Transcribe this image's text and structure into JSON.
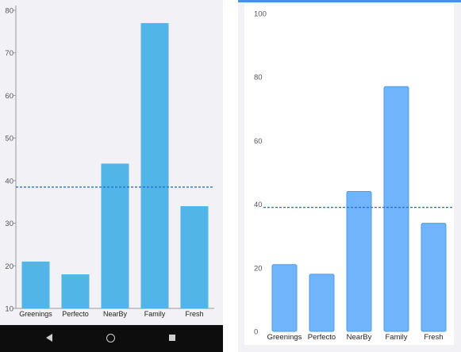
{
  "chart_data": [
    {
      "type": "bar",
      "categories": [
        "Greenings",
        "Perfecto",
        "NearBy",
        "Family",
        "Fresh"
      ],
      "values": [
        21,
        18,
        44,
        77,
        34
      ],
      "reference_line": 38.5,
      "ylim": [
        10,
        80
      ],
      "yticks": [
        10,
        20,
        30,
        40,
        50,
        60,
        70,
        80
      ],
      "bar_color": "#51b5e8",
      "line_color": "#2a6fd4",
      "grid": false
    },
    {
      "type": "bar",
      "categories": [
        "Greenings",
        "Perfecto",
        "NearBy",
        "Family",
        "Fresh"
      ],
      "values": [
        21,
        18,
        44,
        77,
        34
      ],
      "reference_line": 39,
      "ylim": [
        0,
        100
      ],
      "yticks": [
        0,
        20,
        40,
        60,
        80,
        100
      ],
      "bar_color": "#70b5fb",
      "bar_border": "#4f9aea",
      "line_color": "#2a6fd4",
      "grid": false
    }
  ],
  "nav": {
    "back_icon": "back-triangle-icon",
    "home_icon": "home-circle-icon",
    "recents_icon": "recents-square-icon"
  }
}
